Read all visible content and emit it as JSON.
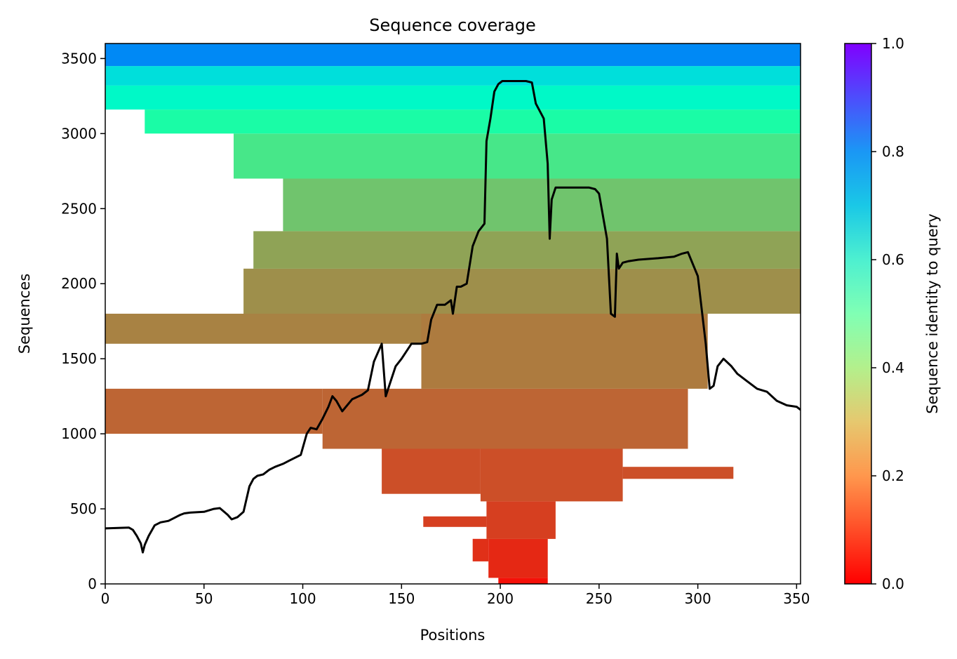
{
  "chart_data": {
    "type": "heatmap",
    "title": "Sequence coverage",
    "xlabel": "Positions",
    "ylabel": "Sequences",
    "xlim": [
      0,
      352
    ],
    "ylim": [
      0,
      3600
    ],
    "x_ticks": [
      0,
      50,
      100,
      150,
      200,
      250,
      300,
      350
    ],
    "y_ticks": [
      0,
      500,
      1000,
      1500,
      2000,
      2500,
      3000,
      3500
    ],
    "colorbar": {
      "label": "Sequence identity to query",
      "colormap": "rainbow_r",
      "range": [
        0.0,
        1.0
      ],
      "ticks": [
        "0.0",
        "0.2",
        "0.4",
        "0.6",
        "0.8",
        "1.0"
      ]
    },
    "coverage_bands": [
      {
        "seq_from": 0,
        "seq_to": 40,
        "pos_from": 199,
        "pos_to": 224,
        "identity": 0.02
      },
      {
        "seq_from": 40,
        "seq_to": 300,
        "pos_from": 194,
        "pos_to": 224,
        "identity": 0.05
      },
      {
        "seq_from": 150,
        "seq_to": 300,
        "pos_from": 186,
        "pos_to": 194,
        "identity": 0.06
      },
      {
        "seq_from": 300,
        "seq_to": 550,
        "pos_from": 193,
        "pos_to": 228,
        "identity": 0.08
      },
      {
        "seq_from": 380,
        "seq_to": 450,
        "pos_from": 161,
        "pos_to": 193,
        "identity": 0.08
      },
      {
        "seq_from": 550,
        "seq_to": 900,
        "pos_from": 190,
        "pos_to": 262,
        "identity": 0.1
      },
      {
        "seq_from": 600,
        "seq_to": 900,
        "pos_from": 140,
        "pos_to": 190,
        "identity": 0.1
      },
      {
        "seq_from": 700,
        "seq_to": 780,
        "pos_from": 262,
        "pos_to": 318,
        "identity": 0.1
      },
      {
        "seq_from": 900,
        "seq_to": 1300,
        "pos_from": 110,
        "pos_to": 295,
        "identity": 0.13
      },
      {
        "seq_from": 1000,
        "seq_to": 1300,
        "pos_from": 0,
        "pos_to": 110,
        "identity": 0.13
      },
      {
        "seq_from": 1300,
        "seq_to": 1800,
        "pos_from": 160,
        "pos_to": 305,
        "identity": 0.16
      },
      {
        "seq_from": 1600,
        "seq_to": 1800,
        "pos_from": 0,
        "pos_to": 160,
        "identity": 0.17
      },
      {
        "seq_from": 1800,
        "seq_to": 2100,
        "pos_from": 70,
        "pos_to": 352,
        "identity": 0.19
      },
      {
        "seq_from": 2100,
        "seq_to": 2350,
        "pos_from": 75,
        "pos_to": 352,
        "identity": 0.22
      },
      {
        "seq_from": 2350,
        "seq_to": 2700,
        "pos_from": 90,
        "pos_to": 352,
        "identity": 0.28
      },
      {
        "seq_from": 2700,
        "seq_to": 3000,
        "pos_from": 65,
        "pos_to": 352,
        "identity": 0.36
      },
      {
        "seq_from": 3000,
        "seq_to": 3160,
        "pos_from": 20,
        "pos_to": 352,
        "identity": 0.45
      },
      {
        "seq_from": 3160,
        "seq_to": 3320,
        "pos_from": 0,
        "pos_to": 352,
        "identity": 0.57
      },
      {
        "seq_from": 3320,
        "seq_to": 3450,
        "pos_from": 0,
        "pos_to": 352,
        "identity": 0.66
      },
      {
        "seq_from": 3450,
        "seq_to": 3600,
        "pos_from": 0,
        "pos_to": 352,
        "identity": 0.82
      }
    ],
    "coverage_line": {
      "x": [
        0,
        12,
        14,
        16,
        18,
        19,
        20,
        22,
        25,
        28,
        32,
        35,
        38,
        40,
        43,
        50,
        55,
        58,
        62,
        64,
        67,
        70,
        73,
        75,
        77,
        80,
        83,
        86,
        90,
        93,
        96,
        99,
        102,
        104,
        107,
        110,
        113,
        115,
        117,
        120,
        125,
        130,
        133,
        136,
        140,
        142,
        144,
        147,
        150,
        155,
        160,
        163,
        165,
        168,
        172,
        175,
        176,
        178,
        180,
        183,
        186,
        189,
        192,
        193,
        195,
        197,
        199,
        201,
        205,
        210,
        213,
        216,
        218,
        220,
        222,
        224,
        225,
        226,
        228,
        232,
        240,
        245,
        248,
        250,
        254,
        256,
        258,
        259,
        260,
        262,
        265,
        270,
        280,
        288,
        292,
        295,
        300,
        304,
        306,
        308,
        310,
        313,
        317,
        320,
        325,
        330,
        335,
        340,
        345,
        350,
        352
      ],
      "y": [
        370,
        375,
        360,
        320,
        270,
        210,
        260,
        320,
        390,
        410,
        420,
        440,
        460,
        470,
        475,
        480,
        500,
        505,
        460,
        430,
        445,
        480,
        650,
        700,
        720,
        730,
        760,
        780,
        800,
        820,
        840,
        860,
        1000,
        1040,
        1030,
        1100,
        1180,
        1250,
        1220,
        1150,
        1230,
        1260,
        1290,
        1480,
        1600,
        1250,
        1330,
        1450,
        1500,
        1600,
        1600,
        1610,
        1760,
        1860,
        1860,
        1890,
        1800,
        1980,
        1980,
        2000,
        2250,
        2350,
        2400,
        2950,
        3100,
        3280,
        3330,
        3350,
        3350,
        3350,
        3350,
        3340,
        3200,
        3150,
        3100,
        2800,
        2300,
        2560,
        2640,
        2640,
        2640,
        2640,
        2630,
        2600,
        2300,
        1800,
        1780,
        2200,
        2100,
        2140,
        2150,
        2160,
        2170,
        2180,
        2200,
        2210,
        2050,
        1600,
        1300,
        1320,
        1450,
        1500,
        1450,
        1400,
        1350,
        1300,
        1280,
        1220,
        1190,
        1180,
        1160
      ]
    }
  }
}
